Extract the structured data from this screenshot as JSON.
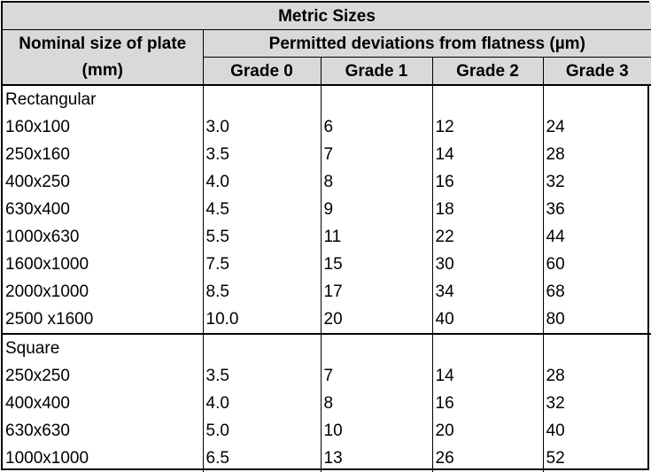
{
  "title": "Metric Sizes",
  "header": {
    "size_label_line1": "Nominal size of plate",
    "size_label_line2": "(mm)",
    "deviation_label": "Permitted deviations from flatness (µm)",
    "grades": [
      "Grade 0",
      "Grade 1",
      "Grade 2",
      "Grade 3"
    ]
  },
  "groups": [
    {
      "name": "Rectangular",
      "rows": [
        [
          "160x100",
          "3.0",
          "6",
          "12",
          "24"
        ],
        [
          "250x160",
          "3.5",
          "7",
          "14",
          "28"
        ],
        [
          "400x250",
          "4.0",
          "8",
          "16",
          "32"
        ],
        [
          "630x400",
          "4.5",
          "9",
          "18",
          "36"
        ],
        [
          "1000x630",
          "5.5",
          "11",
          "22",
          "44"
        ],
        [
          "1600x1000",
          "7.5",
          "15",
          "30",
          "60"
        ],
        [
          "2000x1000",
          "8.5",
          "17",
          "34",
          "68"
        ],
        [
          "2500 x1600",
          "10.0",
          "20",
          "40",
          "80"
        ]
      ]
    },
    {
      "name": "Square",
      "rows": [
        [
          "250x250",
          "3.5",
          "7",
          "14",
          "28"
        ],
        [
          "400x400",
          "4.0",
          "8",
          "16",
          "32"
        ],
        [
          "630x630",
          "5.0",
          "10",
          "20",
          "40"
        ],
        [
          "1000x1000",
          "6.5",
          "13",
          "26",
          "52"
        ]
      ]
    }
  ]
}
